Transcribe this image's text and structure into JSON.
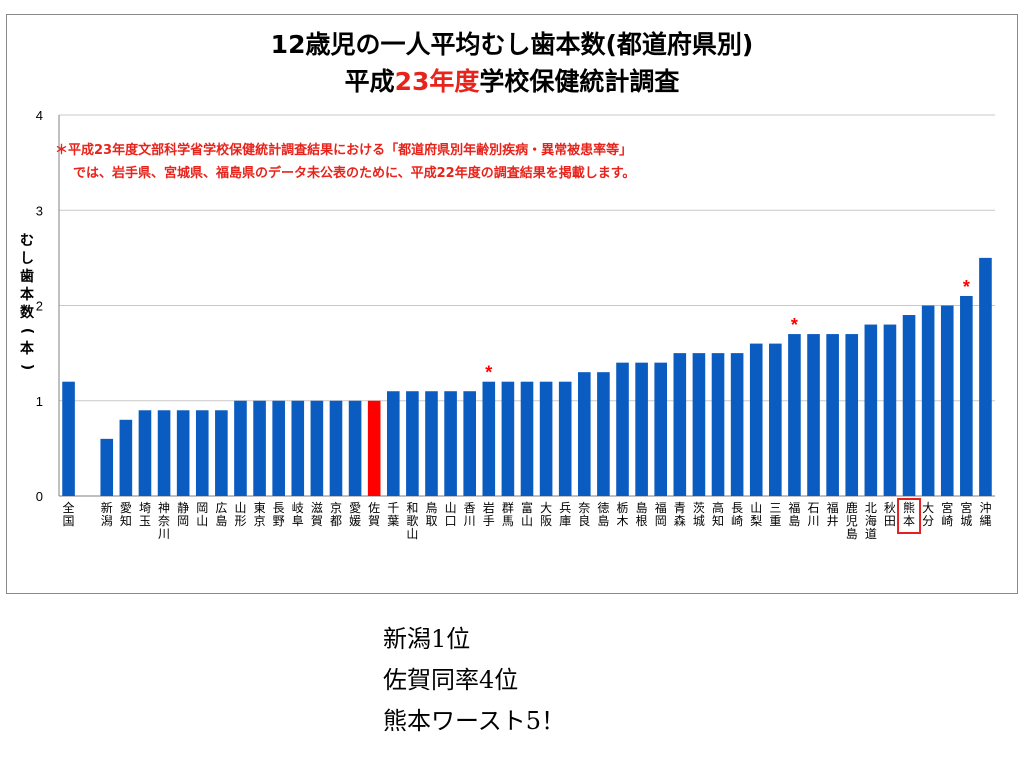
{
  "chart_data": {
    "type": "bar",
    "title_line1": "12歳児の一人平均むし歯本数(都道府県別)",
    "title_line2_pre": "平成",
    "title_line2_highlight": "23年度",
    "title_line2_post": "学校保健統計調査",
    "ylabel": "むし歯本数(本)",
    "ylim": [
      0,
      4
    ],
    "yticks": [
      0,
      1,
      2,
      3,
      4
    ],
    "note_line1": "＊平成23年度文部科学省学校保健統計調査結果における「都道府県別年齢別疾病・異常被患率等」",
    "note_line2": "では、岩手県、宮城県、福島県のデータ未公表のために、平成22年度の調査結果を掲載します。",
    "asterisk_mark": "*",
    "highlight_color": "#ff0000",
    "bar_color": "#0a5cc0",
    "boxed_color": "#e32121",
    "grid": true,
    "legend": "none",
    "categories": [
      "全国",
      "",
      "新潟",
      "愛知",
      "埼玉",
      "神奈川",
      "静岡",
      "岡山",
      "広島",
      "山形",
      "東京",
      "長野",
      "岐阜",
      "滋賀",
      "京都",
      "愛媛",
      "佐賀",
      "千葉",
      "和歌山",
      "鳥取",
      "山口",
      "香川",
      "岩手",
      "群馬",
      "富山",
      "大阪",
      "兵庫",
      "奈良",
      "徳島",
      "栃木",
      "島根",
      "福岡",
      "青森",
      "茨城",
      "高知",
      "長崎",
      "山梨",
      "三重",
      "福島",
      "石川",
      "福井",
      "鹿児島",
      "北海道",
      "秋田",
      "熊本",
      "大分",
      "宮崎",
      "宮城",
      "沖縄"
    ],
    "values": [
      1.2,
      null,
      0.6,
      0.8,
      0.9,
      0.9,
      0.9,
      0.9,
      0.9,
      1.0,
      1.0,
      1.0,
      1.0,
      1.0,
      1.0,
      1.0,
      1.0,
      1.1,
      1.1,
      1.1,
      1.1,
      1.1,
      1.2,
      1.2,
      1.2,
      1.2,
      1.2,
      1.3,
      1.3,
      1.4,
      1.4,
      1.4,
      1.5,
      1.5,
      1.5,
      1.5,
      1.6,
      1.6,
      1.7,
      1.7,
      1.7,
      1.7,
      1.8,
      1.8,
      1.9,
      2.0,
      2.0,
      2.1,
      2.5
    ],
    "highlighted": [
      "佐賀"
    ],
    "asterisk": [
      "岩手",
      "福島",
      "宮城"
    ],
    "boxed": [
      "熊本"
    ]
  },
  "caption": {
    "line1": "新潟1位",
    "line2": "佐賀同率4位",
    "line3": "熊本ワースト5！"
  }
}
